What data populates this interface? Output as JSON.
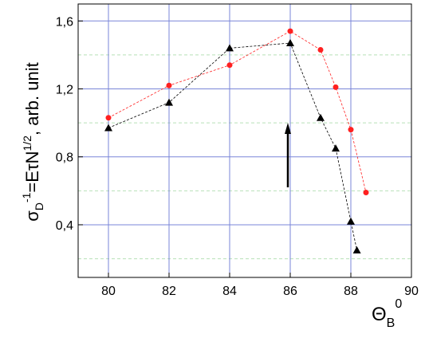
{
  "chart_data": {
    "type": "line",
    "xlabel": {
      "base": "Θ",
      "sub": "B",
      "sup": "0"
    },
    "ylabel": {
      "base": "σ",
      "sub": "D",
      "sup": "-1",
      "mid": "=EτN",
      "sup2": "1/2",
      "tail": ", arb. unit"
    },
    "series": [
      {
        "name": "triangles",
        "color": "#000000",
        "marker": "triangle",
        "x": [
          80,
          82,
          84,
          86,
          87,
          87.5,
          88,
          88.2
        ],
        "values": [
          0.97,
          1.12,
          1.44,
          1.47,
          1.03,
          0.85,
          0.42,
          0.25
        ]
      },
      {
        "name": "circles",
        "color": "#ff2020",
        "marker": "circle",
        "x": [
          80,
          82,
          84,
          86,
          87,
          87.5,
          88,
          88.5
        ],
        "values": [
          1.03,
          1.22,
          1.34,
          1.54,
          1.43,
          1.21,
          0.96,
          0.59
        ]
      }
    ],
    "xlim": [
      79,
      90
    ],
    "xticks": [
      80,
      82,
      84,
      86,
      88,
      90
    ],
    "ylim": [
      0.09,
      1.7
    ],
    "yticks": [
      {
        "value": 0.4,
        "label": "0,4"
      },
      {
        "value": 0.8,
        "label": "0,8"
      },
      {
        "value": 1.2,
        "label": "1,2"
      },
      {
        "value": 1.6,
        "label": "1,6"
      }
    ],
    "minor_yticks": [
      0.2,
      0.6,
      1.0,
      1.4
    ],
    "grid": true
  }
}
